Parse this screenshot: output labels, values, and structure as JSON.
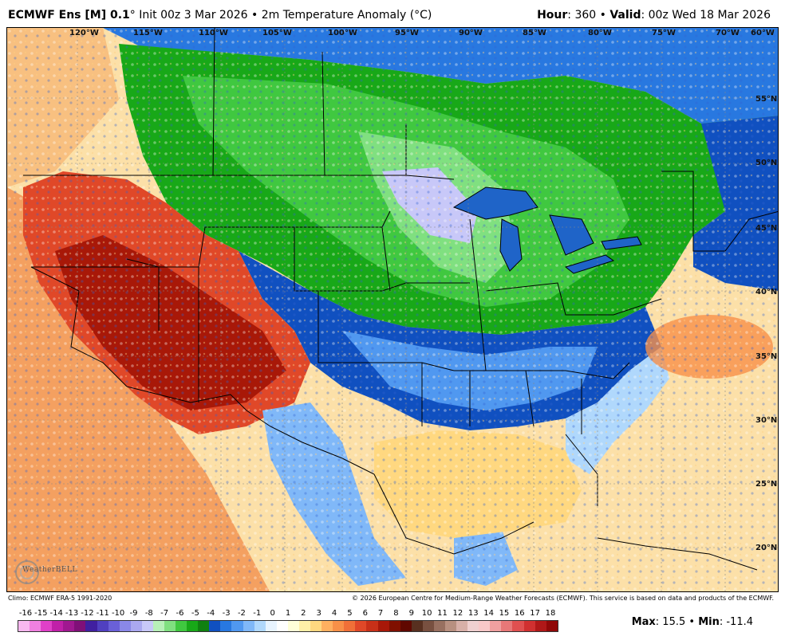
{
  "header": {
    "model": "ECMWF Ens [M] 0.1",
    "degree_symbol": "°",
    "subtitle": "Init 00z 3 Mar 2026 • 2m Temperature Anomaly (°C)",
    "hour_label": "Hour",
    "hour_value": ": 360 • ",
    "valid_label": "Valid",
    "valid_value": ": 00z Wed 18 Mar 2026"
  },
  "map": {
    "longitude_labels": [
      "120°W",
      "115°W",
      "110°W",
      "105°W",
      "100°W",
      "95°W",
      "90°W",
      "85°W",
      "80°W",
      "75°W",
      "70°W",
      "60°W"
    ],
    "latitude_labels": [
      "55°N",
      "50°N",
      "45°N",
      "40°N",
      "35°N",
      "30°N",
      "25°N",
      "20°N"
    ],
    "logo_text": "WeatherBELL"
  },
  "credits": {
    "climo": "Climo: ECMWF ERA-5 1991-2020",
    "copyright": "© 2026 European Centre for Medium-Range Weather Forecasts (ECMWF). This service is based on data and products of the ECMWF."
  },
  "legend": {
    "ticks": [
      "-16",
      "-15",
      "-14",
      "-13",
      "-12",
      "-11",
      "-10",
      "-9",
      "-8",
      "-7",
      "-6",
      "-5",
      "-4",
      "-3",
      "-2",
      "-1",
      "0",
      "1",
      "2",
      "3",
      "4",
      "5",
      "6",
      "7",
      "8",
      "9",
      "10",
      "11",
      "12",
      "13",
      "14",
      "15",
      "16",
      "17",
      "18"
    ],
    "colors": [
      "#f8b8f0",
      "#f080e0",
      "#e040c8",
      "#c020a8",
      "#a01890",
      "#801078",
      "#4020a0",
      "#5040c0",
      "#6a60d8",
      "#8a88e8",
      "#aaa8f0",
      "#c8c8f8",
      "#b8f0b8",
      "#80e080",
      "#40c840",
      "#18a818",
      "#108010",
      "#1050c0",
      "#2878e0",
      "#5098f0",
      "#80b8f8",
      "#b0d8fc",
      "#e8f4ff",
      "#ffffff",
      "#ffffd8",
      "#fff0a8",
      "#ffd880",
      "#ffb060",
      "#f89048",
      "#f07038",
      "#e04828",
      "#c83018",
      "#a81808",
      "#801000",
      "#600800",
      "#583020",
      "#785040",
      "#987060",
      "#b89080",
      "#d8b0a8",
      "#f0d0d0",
      "#f8c8c8",
      "#f0a0a0",
      "#e87878",
      "#e05050",
      "#d03030",
      "#b01818",
      "#900808"
    ],
    "max_label": "Max",
    "max_value": ": 15.5 • ",
    "min_label": "Min",
    "min_value": ": -11.4"
  }
}
